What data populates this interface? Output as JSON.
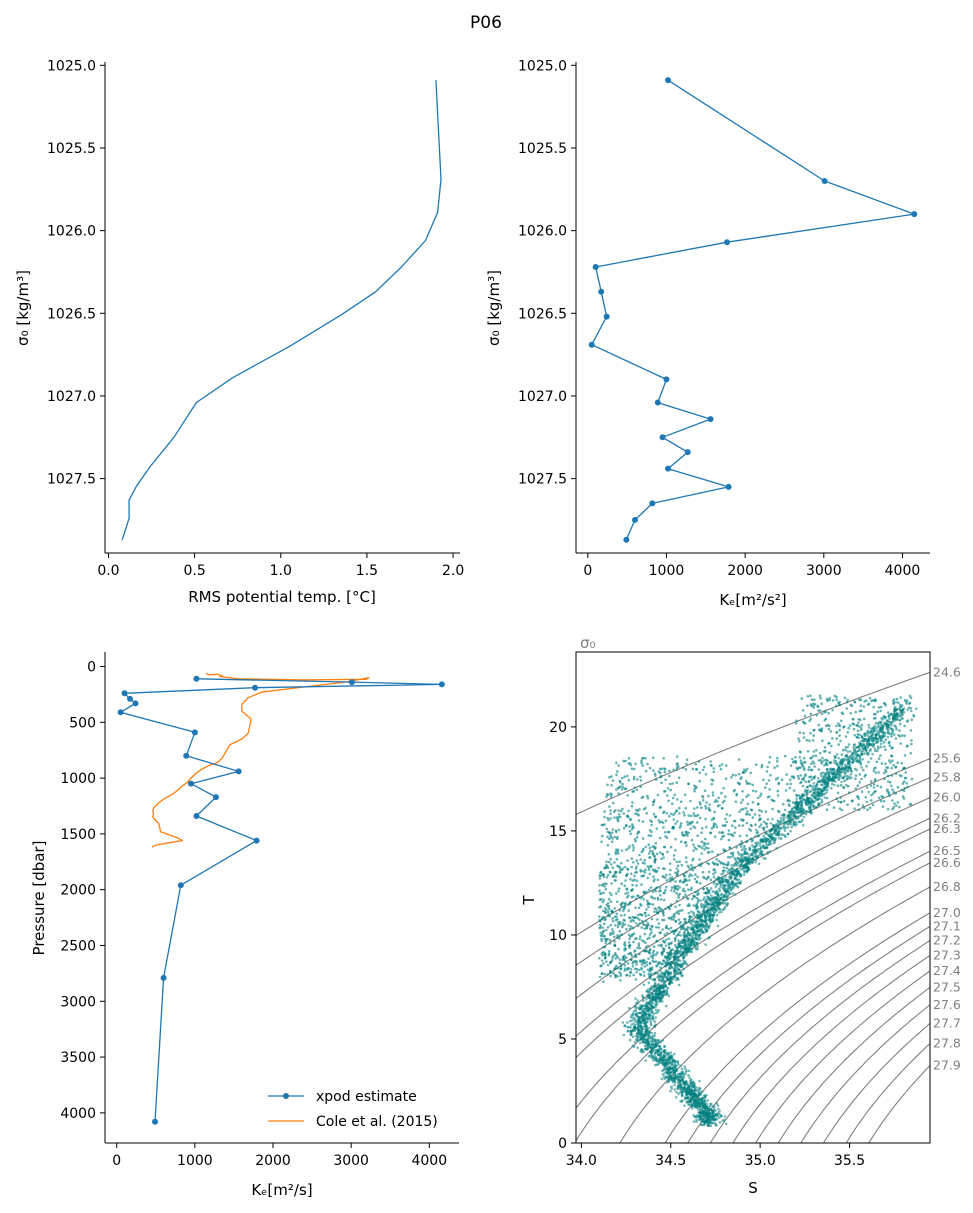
{
  "title": "P06",
  "chart_data": [
    {
      "type": "line",
      "name": "rms-temp-profile",
      "xlabel": "RMS potential temp. [°C]",
      "ylabel": "σ₀ [kg/m³]",
      "xlim": [
        -0.02,
        2.04
      ],
      "ylim": [
        1027.95,
        1024.98
      ],
      "xticks": [
        0.0,
        0.5,
        1.0,
        1.5,
        2.0
      ],
      "xtick_labels": [
        "0.0",
        "0.5",
        "1.0",
        "1.5",
        "2.0"
      ],
      "yticks": [
        1025.0,
        1025.5,
        1026.0,
        1026.5,
        1027.0,
        1027.5
      ],
      "ytick_labels": [
        "1025.0",
        "1025.5",
        "1026.0",
        "1026.5",
        "1027.0",
        "1027.5"
      ],
      "color": "#1f77b4",
      "x": [
        1.9,
        1.93,
        1.91,
        1.84,
        1.7,
        1.55,
        1.35,
        1.05,
        0.72,
        0.51,
        0.38,
        0.24,
        0.16,
        0.12,
        0.12,
        0.08
      ],
      "y": [
        1025.09,
        1025.69,
        1025.89,
        1026.06,
        1026.22,
        1026.37,
        1026.51,
        1026.7,
        1026.89,
        1027.04,
        1027.25,
        1027.43,
        1027.55,
        1027.63,
        1027.74,
        1027.87
      ]
    },
    {
      "type": "line",
      "name": "ke-density-profile",
      "xlabel": "Kₑ[m²/s²]",
      "ylabel": "σ₀ [kg/m³]",
      "xlim": [
        -150,
        4350
      ],
      "ylim": [
        1027.95,
        1024.98
      ],
      "xticks": [
        0,
        1000,
        2000,
        3000,
        4000
      ],
      "xtick_labels": [
        "0",
        "1000",
        "2000",
        "3000",
        "4000"
      ],
      "yticks": [
        1025.0,
        1025.5,
        1026.0,
        1026.5,
        1027.0,
        1027.5
      ],
      "ytick_labels": [
        "1025.0",
        "1025.5",
        "1026.0",
        "1026.5",
        "1027.0",
        "1027.5"
      ],
      "color": "#1f77b4",
      "x": [
        1020,
        3010,
        4150,
        1770,
        100,
        170,
        240,
        50,
        1000,
        890,
        1560,
        950,
        1270,
        1020,
        1790,
        820,
        600,
        490
      ],
      "y": [
        1025.09,
        1025.7,
        1025.9,
        1026.07,
        1026.22,
        1026.37,
        1026.52,
        1026.69,
        1026.9,
        1027.04,
        1027.14,
        1027.25,
        1027.34,
        1027.44,
        1027.55,
        1027.65,
        1027.75,
        1027.87
      ]
    },
    {
      "type": "line",
      "name": "ke-pressure-profile",
      "xlabel": "Kₑ[m²/s]",
      "ylabel": "Pressure [dbar]",
      "xlim": [
        -150,
        4380
      ],
      "ylim": [
        4270,
        -130
      ],
      "xticks": [
        0,
        1000,
        2000,
        3000,
        4000
      ],
      "xtick_labels": [
        "0",
        "1000",
        "2000",
        "3000",
        "4000"
      ],
      "yticks": [
        0,
        500,
        1000,
        1500,
        2000,
        2500,
        3000,
        3500,
        4000
      ],
      "ytick_labels": [
        "0",
        "500",
        "1000",
        "1500",
        "2000",
        "2500",
        "3000",
        "3500",
        "4000"
      ],
      "legend": [
        "xpod estimate",
        "Cole et al. (2015)"
      ],
      "legend_location": "lower-right",
      "series": [
        {
          "name": "xpod estimate",
          "color": "#1f77b4",
          "markers": true,
          "x": [
            1020,
            3010,
            4160,
            1770,
            100,
            170,
            240,
            50,
            1000,
            890,
            1560,
            950,
            1270,
            1020,
            1790,
            820,
            600,
            490
          ],
          "y": [
            110,
            140,
            160,
            190,
            240,
            290,
            330,
            410,
            590,
            800,
            940,
            1050,
            1170,
            1340,
            1560,
            1960,
            2790,
            4080
          ]
        },
        {
          "name": "Cole et al. (2015)",
          "color": "#ff7f0e",
          "markers": false,
          "x": [
            1140,
            1180,
            1290,
            1350,
            1320,
            1560,
            2380,
            3190,
            3230,
            2930,
            2430,
            1850,
            1680,
            1600,
            1600,
            1720,
            1700,
            1680,
            1600,
            1540,
            1450,
            1400,
            1350,
            1290,
            1170,
            1090,
            1010,
            950,
            900,
            860,
            810,
            760,
            700,
            620,
            540,
            480,
            460,
            470,
            460,
            500,
            540,
            550,
            560,
            640,
            760,
            840,
            660,
            500,
            450
          ],
          "y": [
            60,
            75,
            70,
            85,
            90,
            110,
            120,
            115,
            100,
            140,
            180,
            230,
            280,
            340,
            400,
            470,
            540,
            600,
            650,
            670,
            700,
            760,
            820,
            860,
            890,
            920,
            960,
            1000,
            1040,
            1060,
            1090,
            1120,
            1150,
            1180,
            1220,
            1260,
            1290,
            1320,
            1350,
            1380,
            1410,
            1440,
            1480,
            1500,
            1530,
            1560,
            1580,
            1600,
            1620
          ]
        }
      ]
    },
    {
      "type": "scatter",
      "name": "ts-diagram",
      "xlabel": "S",
      "ylabel": "T",
      "corner_label": "σ₀",
      "xlim": [
        33.97,
        35.95
      ],
      "ylim": [
        0,
        23.6
      ],
      "xticks": [
        34.0,
        34.5,
        35.0,
        35.5
      ],
      "xtick_labels": [
        "34.0",
        "34.5",
        "35.0",
        "35.5"
      ],
      "yticks": [
        0,
        5,
        10,
        15,
        20
      ],
      "ytick_labels": [
        "0",
        "5",
        "10",
        "15",
        "20"
      ],
      "point_color": "#008080",
      "contour_color": "#808080",
      "density_contours": [
        24.6,
        25.6,
        25.8,
        26.0,
        26.2,
        26.3,
        26.5,
        26.6,
        26.8,
        27.0,
        27.1,
        27.2,
        27.3,
        27.4,
        27.5,
        27.6,
        27.7,
        27.8,
        27.9
      ],
      "contour_labels": [
        "24.6",
        "25.6",
        "25.8",
        "26.0",
        "26.2",
        "26.3",
        "26.5",
        "26.6",
        "26.8",
        "27.0",
        "27.1",
        "27.2",
        "27.3",
        "27.4",
        "27.5",
        "27.6",
        "27.7",
        "27.8",
        "27.9"
      ]
    }
  ]
}
